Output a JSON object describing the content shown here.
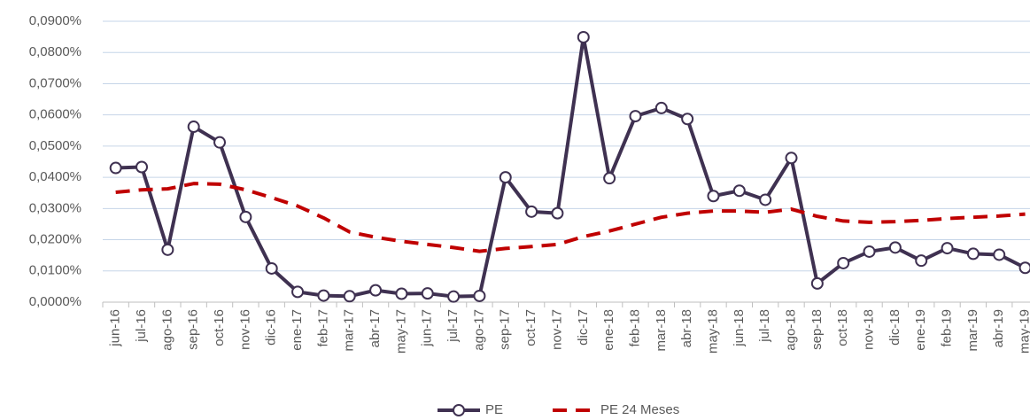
{
  "chart_data": {
    "type": "line",
    "categories": [
      "jun-16",
      "jul-16",
      "ago-16",
      "sep-16",
      "oct-16",
      "nov-16",
      "dic-16",
      "ene-17",
      "feb-17",
      "mar-17",
      "abr-17",
      "may-17",
      "jun-17",
      "jul-17",
      "ago-17",
      "sep-17",
      "oct-17",
      "nov-17",
      "dic-17",
      "ene-18",
      "feb-18",
      "mar-18",
      "abr-18",
      "may-18",
      "jun-18",
      "jul-18",
      "ago-18",
      "sep-18",
      "oct-18",
      "nov-18",
      "dic-18",
      "ene-19",
      "feb-19",
      "mar-19",
      "abr-19",
      "may-19"
    ],
    "series": [
      {
        "name": "PE",
        "color": "#3f3151",
        "style": "solid",
        "markers": true,
        "values": [
          0.043,
          0.0433,
          0.0168,
          0.0562,
          0.0512,
          0.0273,
          0.0108,
          0.0033,
          0.0021,
          0.0019,
          0.0038,
          0.0027,
          0.0028,
          0.0018,
          0.002,
          0.04,
          0.029,
          0.0285,
          0.0849,
          0.0397,
          0.0596,
          0.0622,
          0.0587,
          0.034,
          0.0357,
          0.0328,
          0.0462,
          0.006,
          0.0125,
          0.0162,
          0.0175,
          0.0133,
          0.0173,
          0.0155,
          0.0152,
          0.011
        ]
      },
      {
        "name": "PE 24 Meses",
        "color": "#c00000",
        "style": "dashed",
        "markers": false,
        "values": [
          0.0352,
          0.036,
          0.0363,
          0.038,
          0.0378,
          0.036,
          0.0335,
          0.0308,
          0.027,
          0.0225,
          0.0208,
          0.0195,
          0.0185,
          0.0175,
          0.0163,
          0.0172,
          0.0178,
          0.0185,
          0.021,
          0.0228,
          0.025,
          0.0272,
          0.0285,
          0.0292,
          0.0292,
          0.0288,
          0.0298,
          0.0275,
          0.026,
          0.0256,
          0.0258,
          0.0262,
          0.0268,
          0.0272,
          0.0276,
          0.0282
        ]
      }
    ],
    "ylim": [
      0,
      0.09
    ],
    "yticks": [
      {
        "value": 0,
        "label": "0,0000%"
      },
      {
        "value": 0.01,
        "label": "0,0100%"
      },
      {
        "value": 0.02,
        "label": "0,0200%"
      },
      {
        "value": 0.03,
        "label": "0,0300%"
      },
      {
        "value": 0.04,
        "label": "0,0400%"
      },
      {
        "value": 0.05,
        "label": "0,0500%"
      },
      {
        "value": 0.06,
        "label": "0,0600%"
      },
      {
        "value": 0.07,
        "label": "0,0700%"
      },
      {
        "value": 0.08,
        "label": "0,0800%"
      },
      {
        "value": 0.09,
        "label": "0,0900%"
      }
    ],
    "grid": true,
    "legend": "bottom"
  }
}
